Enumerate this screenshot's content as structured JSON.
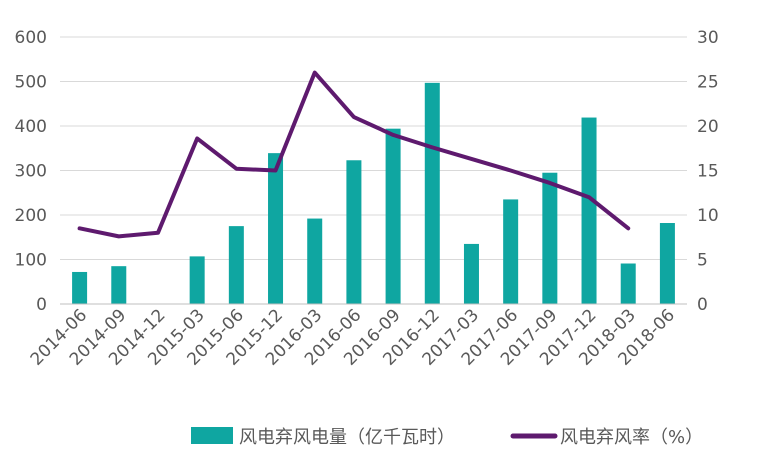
{
  "chart_data": {
    "type": "bar",
    "categories": [
      "2014-06",
      "2014-09",
      "2014-12",
      "2015-03",
      "2015-06",
      "2015-12",
      "2016-03",
      "2016-06",
      "2016-09",
      "2016-12",
      "2017-03",
      "2017-06",
      "2017-09",
      "2017-12",
      "2018-03",
      "2018-06"
    ],
    "series": [
      {
        "name": "风电弃风电量（亿千瓦时）",
        "type": "bar",
        "axis": "left",
        "color": "#0fa6a1",
        "values": [
          72,
          85,
          null,
          107,
          175,
          339,
          192,
          323,
          394,
          497,
          135,
          235,
          295,
          419,
          91,
          182
        ]
      },
      {
        "name": "风电弃风率（%）",
        "type": "line",
        "axis": "right",
        "color": "#5e1a6e",
        "values": [
          8.5,
          7.6,
          8.0,
          18.6,
          15.2,
          15.0,
          26.0,
          21.0,
          19.0,
          17.6,
          16.3,
          15.0,
          13.6,
          12.0,
          8.5,
          null
        ]
      }
    ],
    "y_left": {
      "min": 0,
      "max": 600,
      "ticks": [
        "0",
        "100",
        "200",
        "300",
        "400",
        "500",
        "600"
      ]
    },
    "y_right": {
      "min": 0,
      "max": 30,
      "ticks": [
        "0",
        "5",
        "10",
        "15",
        "20",
        "25",
        "30"
      ]
    },
    "grid": true,
    "legend_position": "bottom-right"
  }
}
